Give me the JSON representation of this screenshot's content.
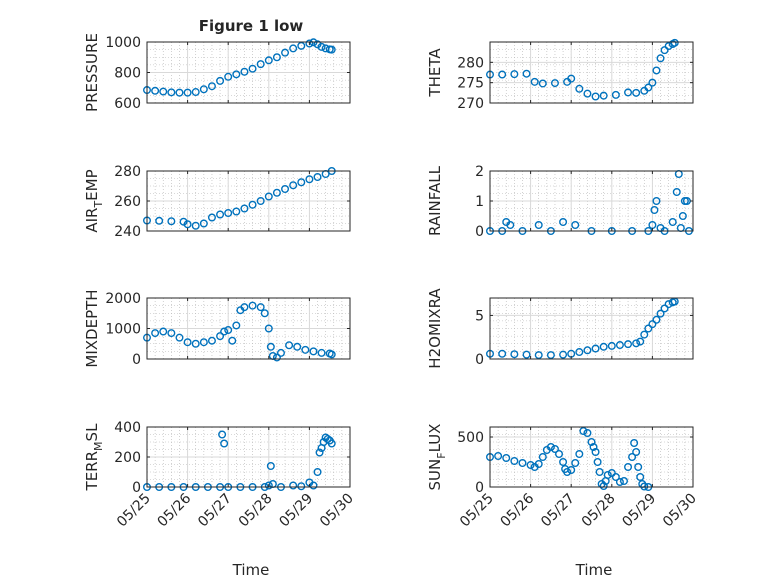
{
  "figure": {
    "title": "Figure 1 low",
    "xlabel": "Time",
    "x_tick_labels": [
      "05/25",
      "05/26",
      "05/27",
      "05/28",
      "05/29",
      "05/30"
    ]
  },
  "colors": {
    "marker": "#0072BD",
    "axis": "#262626",
    "grid": "#d9d9d9",
    "minorgrid": "#b3b3b3"
  },
  "chart_data": [
    {
      "type": "scatter",
      "ylabel": "PRESSURE",
      "ylim": [
        600,
        1000
      ],
      "yticks": [
        600,
        800,
        1000
      ],
      "xlim": [
        0,
        5
      ],
      "x_note": "days since 05/25",
      "grid": true,
      "values": [
        [
          0,
          685
        ],
        [
          0.2,
          680
        ],
        [
          0.4,
          675
        ],
        [
          0.6,
          670
        ],
        [
          0.8,
          668
        ],
        [
          1.0,
          668
        ],
        [
          1.2,
          672
        ],
        [
          1.4,
          690
        ],
        [
          1.6,
          710
        ],
        [
          1.8,
          745
        ],
        [
          2.0,
          772
        ],
        [
          2.2,
          788
        ],
        [
          2.4,
          805
        ],
        [
          2.6,
          825
        ],
        [
          2.8,
          855
        ],
        [
          3.0,
          880
        ],
        [
          3.2,
          900
        ],
        [
          3.4,
          930
        ],
        [
          3.6,
          958
        ],
        [
          3.8,
          975
        ],
        [
          4.0,
          990
        ],
        [
          4.1,
          998
        ],
        [
          4.2,
          985
        ],
        [
          4.3,
          968
        ],
        [
          4.4,
          958
        ],
        [
          4.5,
          952
        ],
        [
          4.55,
          950
        ]
      ]
    },
    {
      "type": "scatter",
      "ylabel": "THETA",
      "ylim": [
        270,
        285
      ],
      "yticks": [
        270,
        275,
        280
      ],
      "xlim": [
        0,
        5
      ],
      "grid": true,
      "values": [
        [
          0,
          277
        ],
        [
          0.3,
          277
        ],
        [
          0.6,
          277.1
        ],
        [
          0.9,
          277.2
        ],
        [
          1.1,
          275.2
        ],
        [
          1.3,
          274.8
        ],
        [
          1.6,
          274.9
        ],
        [
          1.9,
          275.2
        ],
        [
          2.0,
          276
        ],
        [
          2.2,
          273.5
        ],
        [
          2.4,
          272.3
        ],
        [
          2.6,
          271.6
        ],
        [
          2.8,
          271.8
        ],
        [
          3.1,
          272
        ],
        [
          3.4,
          272.6
        ],
        [
          3.6,
          272.5
        ],
        [
          3.8,
          273
        ],
        [
          3.9,
          273.8
        ],
        [
          4.0,
          275
        ],
        [
          4.1,
          278
        ],
        [
          4.2,
          281
        ],
        [
          4.3,
          283
        ],
        [
          4.4,
          284
        ],
        [
          4.5,
          284.5
        ],
        [
          4.55,
          284.8
        ]
      ]
    },
    {
      "type": "scatter",
      "ylabel": "AIR_TEMP",
      "ylabel_main": "AIR",
      "ylabel_sub": "T",
      "ylabel_rest": "EMP",
      "ylim": [
        240,
        280
      ],
      "yticks": [
        240,
        260,
        280
      ],
      "xlim": [
        0,
        5
      ],
      "grid": true,
      "values": [
        [
          0,
          247
        ],
        [
          0.3,
          246.8
        ],
        [
          0.6,
          246.5
        ],
        [
          0.9,
          246.2
        ],
        [
          1.0,
          244.5
        ],
        [
          1.2,
          243.5
        ],
        [
          1.4,
          245
        ],
        [
          1.6,
          249
        ],
        [
          1.8,
          251
        ],
        [
          2.0,
          252
        ],
        [
          2.2,
          253
        ],
        [
          2.4,
          255
        ],
        [
          2.6,
          257.5
        ],
        [
          2.8,
          260
        ],
        [
          3.0,
          263
        ],
        [
          3.2,
          265.5
        ],
        [
          3.4,
          268
        ],
        [
          3.6,
          270.5
        ],
        [
          3.8,
          272.5
        ],
        [
          4.0,
          274.5
        ],
        [
          4.2,
          276
        ],
        [
          4.4,
          278
        ],
        [
          4.55,
          280
        ]
      ]
    },
    {
      "type": "scatter",
      "ylabel": "RAINFALL",
      "ylim": [
        0,
        2
      ],
      "yticks": [
        0,
        1,
        2
      ],
      "xlim": [
        0,
        5
      ],
      "grid": true,
      "values": [
        [
          0,
          0
        ],
        [
          0.3,
          0
        ],
        [
          0.4,
          0.3
        ],
        [
          0.5,
          0.2
        ],
        [
          0.8,
          0
        ],
        [
          1.2,
          0.2
        ],
        [
          1.5,
          0
        ],
        [
          1.8,
          0.3
        ],
        [
          2.1,
          0.2
        ],
        [
          2.5,
          0
        ],
        [
          3.0,
          0
        ],
        [
          3.5,
          0
        ],
        [
          3.9,
          0
        ],
        [
          4.0,
          0.2
        ],
        [
          4.05,
          0.7
        ],
        [
          4.1,
          1.0
        ],
        [
          4.2,
          0.1
        ],
        [
          4.3,
          0
        ],
        [
          4.5,
          0.3
        ],
        [
          4.6,
          1.3
        ],
        [
          4.65,
          1.9
        ],
        [
          4.7,
          0.1
        ],
        [
          4.75,
          0.5
        ],
        [
          4.8,
          1.0
        ],
        [
          4.85,
          1.0
        ],
        [
          4.9,
          0
        ]
      ]
    },
    {
      "type": "scatter",
      "ylabel": "MIXDEPTH",
      "ylim": [
        0,
        2000
      ],
      "yticks": [
        0,
        1000,
        2000
      ],
      "xlim": [
        0,
        5
      ],
      "grid": true,
      "values": [
        [
          0,
          700
        ],
        [
          0.2,
          850
        ],
        [
          0.4,
          900
        ],
        [
          0.6,
          850
        ],
        [
          0.8,
          700
        ],
        [
          1.0,
          550
        ],
        [
          1.2,
          500
        ],
        [
          1.4,
          550
        ],
        [
          1.6,
          600
        ],
        [
          1.8,
          750
        ],
        [
          1.9,
          900
        ],
        [
          2.0,
          950
        ],
        [
          2.1,
          600
        ],
        [
          2.2,
          1100
        ],
        [
          2.3,
          1600
        ],
        [
          2.4,
          1700
        ],
        [
          2.6,
          1750
        ],
        [
          2.8,
          1700
        ],
        [
          2.9,
          1500
        ],
        [
          3.0,
          1000
        ],
        [
          3.05,
          400
        ],
        [
          3.1,
          100
        ],
        [
          3.2,
          50
        ],
        [
          3.3,
          200
        ],
        [
          3.5,
          450
        ],
        [
          3.7,
          400
        ],
        [
          3.9,
          300
        ],
        [
          4.1,
          250
        ],
        [
          4.3,
          200
        ],
        [
          4.5,
          180
        ],
        [
          4.55,
          150
        ]
      ]
    },
    {
      "type": "scatter",
      "ylabel": "H2OMIXRA",
      "ylim": [
        0,
        7
      ],
      "yticks": [
        0,
        5
      ],
      "xlim": [
        0,
        5
      ],
      "grid": true,
      "values": [
        [
          0,
          0.6
        ],
        [
          0.3,
          0.6
        ],
        [
          0.6,
          0.55
        ],
        [
          0.9,
          0.5
        ],
        [
          1.2,
          0.45
        ],
        [
          1.5,
          0.45
        ],
        [
          1.8,
          0.5
        ],
        [
          2.0,
          0.6
        ],
        [
          2.2,
          0.8
        ],
        [
          2.4,
          1.0
        ],
        [
          2.6,
          1.2
        ],
        [
          2.8,
          1.4
        ],
        [
          3.0,
          1.5
        ],
        [
          3.2,
          1.6
        ],
        [
          3.4,
          1.7
        ],
        [
          3.6,
          1.8
        ],
        [
          3.7,
          2.0
        ],
        [
          3.8,
          2.8
        ],
        [
          3.9,
          3.5
        ],
        [
          4.0,
          4.0
        ],
        [
          4.1,
          4.5
        ],
        [
          4.2,
          5.2
        ],
        [
          4.3,
          5.8
        ],
        [
          4.4,
          6.3
        ],
        [
          4.5,
          6.5
        ],
        [
          4.55,
          6.6
        ]
      ]
    },
    {
      "type": "scatter",
      "ylabel": "TERR_MSL",
      "ylabel_main": "TERR",
      "ylabel_sub": "M",
      "ylabel_rest": "SL",
      "ylim": [
        0,
        400
      ],
      "yticks": [
        0,
        200,
        400
      ],
      "xlim": [
        0,
        5
      ],
      "grid": true,
      "values": [
        [
          0,
          0
        ],
        [
          0.3,
          0
        ],
        [
          0.6,
          0
        ],
        [
          0.9,
          0
        ],
        [
          1.2,
          0
        ],
        [
          1.5,
          0
        ],
        [
          1.8,
          0
        ],
        [
          1.85,
          350
        ],
        [
          1.9,
          290
        ],
        [
          2.0,
          0
        ],
        [
          2.3,
          0
        ],
        [
          2.6,
          0
        ],
        [
          2.9,
          0
        ],
        [
          3.0,
          10
        ],
        [
          3.05,
          140
        ],
        [
          3.1,
          20
        ],
        [
          3.3,
          0
        ],
        [
          3.6,
          10
        ],
        [
          3.8,
          5
        ],
        [
          4.0,
          30
        ],
        [
          4.1,
          10
        ],
        [
          4.2,
          100
        ],
        [
          4.25,
          230
        ],
        [
          4.3,
          260
        ],
        [
          4.35,
          300
        ],
        [
          4.4,
          330
        ],
        [
          4.45,
          320
        ],
        [
          4.5,
          310
        ],
        [
          4.55,
          290
        ]
      ]
    },
    {
      "type": "scatter",
      "ylabel": "SUN_FLUX",
      "ylabel_main": "SUN",
      "ylabel_sub": "F",
      "ylabel_rest": "LUX",
      "ylim": [
        0,
        600
      ],
      "yticks": [
        0,
        500
      ],
      "xlim": [
        0,
        5
      ],
      "grid": true,
      "values": [
        [
          0,
          300
        ],
        [
          0.2,
          310
        ],
        [
          0.4,
          290
        ],
        [
          0.6,
          260
        ],
        [
          0.8,
          240
        ],
        [
          1.0,
          220
        ],
        [
          1.1,
          200
        ],
        [
          1.2,
          230
        ],
        [
          1.3,
          300
        ],
        [
          1.4,
          370
        ],
        [
          1.5,
          400
        ],
        [
          1.6,
          380
        ],
        [
          1.7,
          330
        ],
        [
          1.8,
          250
        ],
        [
          1.85,
          180
        ],
        [
          1.9,
          150
        ],
        [
          2.0,
          170
        ],
        [
          2.1,
          240
        ],
        [
          2.2,
          330
        ],
        [
          2.3,
          560
        ],
        [
          2.4,
          540
        ],
        [
          2.5,
          450
        ],
        [
          2.55,
          400
        ],
        [
          2.6,
          350
        ],
        [
          2.65,
          250
        ],
        [
          2.7,
          150
        ],
        [
          2.75,
          30
        ],
        [
          2.8,
          10
        ],
        [
          2.85,
          60
        ],
        [
          2.9,
          120
        ],
        [
          3.0,
          140
        ],
        [
          3.1,
          100
        ],
        [
          3.2,
          50
        ],
        [
          3.3,
          60
        ],
        [
          3.4,
          200
        ],
        [
          3.5,
          300
        ],
        [
          3.55,
          440
        ],
        [
          3.6,
          350
        ],
        [
          3.65,
          200
        ],
        [
          3.7,
          100
        ],
        [
          3.75,
          30
        ],
        [
          3.8,
          5
        ],
        [
          3.9,
          0
        ]
      ]
    }
  ]
}
